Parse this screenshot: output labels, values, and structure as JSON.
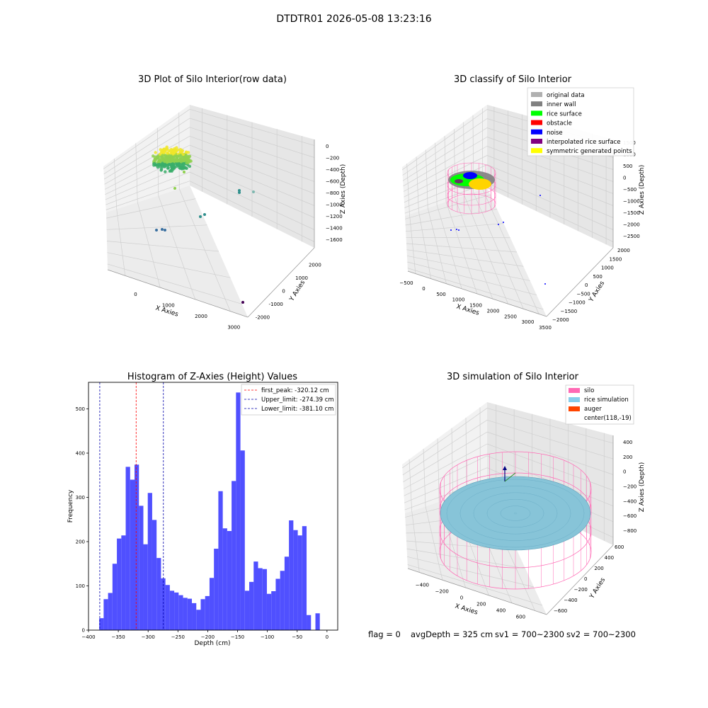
{
  "figure": {
    "title": "DTDTR01 2026-05-08 13:23:16",
    "status": {
      "flag": "flag = 0",
      "avg_depth": "avgDepth = 325 cm",
      "sv1": "sv1 = 700~2300",
      "sv2": "sv2 = 700~2300"
    }
  },
  "chart_data": [
    {
      "type": "scatter",
      "title": "3D Plot of Silo Interior(row data)",
      "xlabel": "X Axies",
      "ylabel": "Y Axies",
      "zlabel": "Z Axies (Depth)",
      "x_ticks": [
        "0",
        "1000",
        "2000",
        "3000"
      ],
      "y_ticks": [
        "-2000",
        "-1000",
        "0",
        "1000",
        "2000"
      ],
      "z_ticks": [
        "0",
        "−200",
        "−400",
        "−600",
        "−800",
        "−1000",
        "−1200",
        "−1400",
        "−1600"
      ],
      "grid": true,
      "colors": {
        "cluster_high": "#f0e62a",
        "cluster_mid": "#8fd14f",
        "cluster_low": "#3aae6a",
        "teal": "#2f8f8c",
        "blue": "#3a6fa0",
        "dark": "#440154"
      }
    },
    {
      "type": "scatter",
      "title": "3D classify of Silo Interior",
      "xlabel": "X Axies",
      "ylabel": "Y Axies",
      "zlabel": "Z Axies (Depth)",
      "x_ticks": [
        "−500",
        "0",
        "500",
        "1000",
        "1500",
        "2000",
        "2500",
        "3000",
        "3500"
      ],
      "y_ticks": [
        "−2000",
        "−1500",
        "−1000",
        "−500",
        "0",
        "500",
        "1000",
        "1500",
        "2000"
      ],
      "z_ticks": [
        "1500",
        "1000",
        "500",
        "0",
        "−500",
        "−1000",
        "−1500",
        "−2000",
        "−2500"
      ],
      "legend": [
        {
          "label": "original data",
          "color": "#b0b0b0"
        },
        {
          "label": "inner wall",
          "color": "#808080"
        },
        {
          "label": "rice surface",
          "color": "#00ff00"
        },
        {
          "label": "obstacle",
          "color": "#ff0000"
        },
        {
          "label": "noise",
          "color": "#0000ff"
        },
        {
          "label": "interpolated rice surface",
          "color": "#800080"
        },
        {
          "label": "symmetric generated points",
          "color": "#ffff00"
        }
      ],
      "legend_position": "top-right",
      "grid": true
    },
    {
      "type": "bar",
      "title": "Histogram of Z-Axies (Height) Values",
      "xlabel": "Depth (cm)",
      "ylabel": "Frequency",
      "xlim": [
        -400,
        18
      ],
      "ylim": [
        0,
        560
      ],
      "x_ticks": [
        -400,
        -350,
        -300,
        -250,
        -200,
        -150,
        -100,
        -50,
        0
      ],
      "y_ticks": [
        0,
        100,
        200,
        300,
        400,
        500
      ],
      "bin_start": -382,
      "bin_width": 7.4,
      "values": [
        27,
        70,
        84,
        150,
        207,
        214,
        369,
        340,
        374,
        281,
        194,
        310,
        249,
        163,
        117,
        102,
        89,
        85,
        79,
        73,
        71,
        61,
        46,
        70,
        77,
        118,
        184,
        314,
        230,
        224,
        337,
        537,
        406,
        89,
        109,
        155,
        140,
        138,
        82,
        88,
        116,
        134,
        166,
        248,
        226,
        214,
        235,
        34,
        0,
        38
      ],
      "bar_color": "#5050ff",
      "lines": [
        {
          "name": "first_peak: -320.12 cm",
          "x": -320.12,
          "color": "#ff0000"
        },
        {
          "name": "Upper_limit: -274.39 cm",
          "x": -274.39,
          "color": "#0000aa"
        },
        {
          "name": "Lower_limit: -381.10 cm",
          "x": -381.1,
          "color": "#0000aa"
        }
      ],
      "legend_position": "top-right",
      "grid": false
    },
    {
      "type": "scatter",
      "title": "3D simulation of Silo Interior",
      "xlabel": "X Axies",
      "ylabel": "Y Axies",
      "zlabel": "Z Axies (Depth)",
      "x_ticks": [
        "−400",
        "−200",
        "0",
        "200",
        "400",
        "600"
      ],
      "y_ticks": [
        "−600",
        "−400",
        "−200",
        "0",
        "200",
        "400",
        "600"
      ],
      "z_ticks": [
        "400",
        "200",
        "0",
        "−200",
        "−400",
        "−600",
        "−800"
      ],
      "legend": [
        {
          "label": "silo",
          "color": "#ff69b4"
        },
        {
          "label": "rice simulation",
          "color": "#87ceeb"
        },
        {
          "label": "auger",
          "color": "#ff4500"
        },
        {
          "label": "center(118,-19)",
          "color": ""
        }
      ],
      "legend_position": "top-right",
      "grid": true
    }
  ]
}
